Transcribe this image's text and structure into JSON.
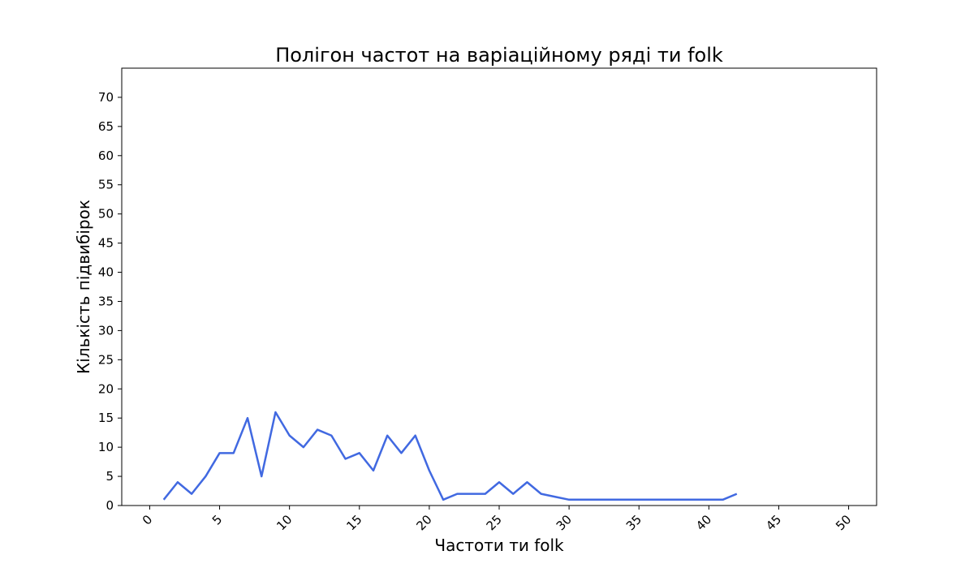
{
  "chart_data": {
    "type": "line",
    "title": "Полігон частот на варіаційному ряді ти folk",
    "xlabel": "Частоти ти folk",
    "ylabel": "Кількість підвибірок",
    "xlim": [
      -2,
      52
    ],
    "ylim": [
      0,
      75
    ],
    "x_ticks": [
      0,
      5,
      10,
      15,
      20,
      25,
      30,
      35,
      40,
      45,
      50
    ],
    "y_ticks": [
      0,
      5,
      10,
      15,
      20,
      25,
      30,
      35,
      40,
      45,
      50,
      55,
      60,
      65,
      70
    ],
    "grid": false,
    "series": [
      {
        "color": "#4169e1",
        "x": [
          1,
          2,
          3,
          4,
          5,
          6,
          7,
          8,
          9,
          10,
          11,
          12,
          13,
          14,
          15,
          16,
          17,
          18,
          19,
          20,
          21,
          22,
          23,
          24,
          25,
          26,
          27,
          28,
          29,
          30,
          31,
          32,
          33,
          34,
          35,
          36,
          37,
          38,
          39,
          40,
          41,
          42
        ],
        "y": [
          1,
          4,
          2,
          5,
          9,
          9,
          15,
          5,
          16,
          12,
          10,
          13,
          12,
          8,
          9,
          6,
          12,
          9,
          12,
          6,
          1,
          2,
          2,
          2,
          4,
          2,
          4,
          2,
          1.5,
          1,
          1,
          1,
          1,
          1,
          1,
          1,
          1,
          1,
          1,
          1,
          1,
          2
        ]
      }
    ]
  }
}
